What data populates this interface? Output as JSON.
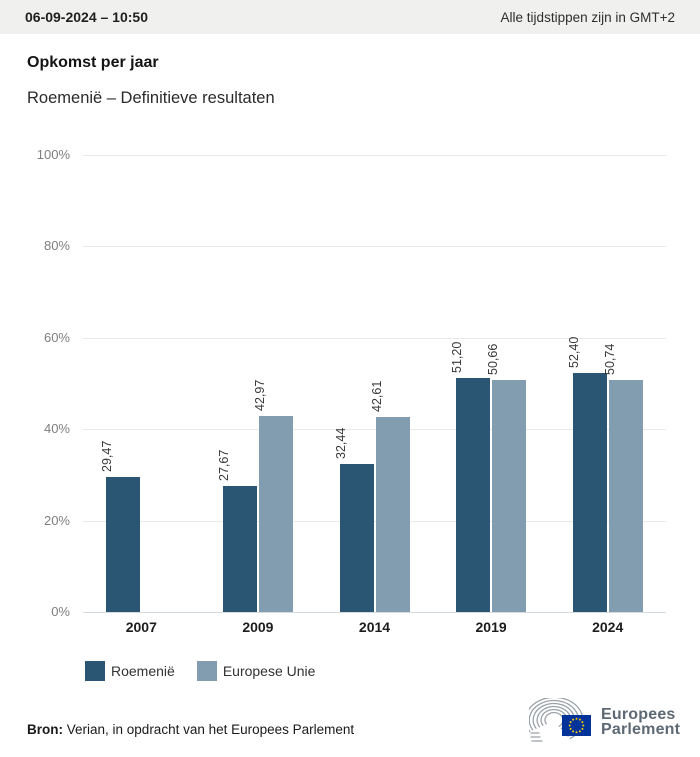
{
  "header": {
    "datetime": "06-09-2024 – 10:50",
    "timezone_note": "Alle tijdstippen zijn in GMT+2"
  },
  "title": "Opkomst per jaar",
  "subtitle": "Roemenië – Definitieve resultaten",
  "chart_data": {
    "type": "bar",
    "categories": [
      "2007",
      "2009",
      "2014",
      "2019",
      "2024"
    ],
    "series": [
      {
        "name": "Roemenië",
        "color": "#2A5674",
        "values": [
          29.47,
          27.67,
          32.44,
          51.2,
          52.4
        ],
        "labels": [
          "29,47",
          "27,67",
          "32,44",
          "51,20",
          "52,40"
        ]
      },
      {
        "name": "Europese Unie",
        "color": "#839DB0",
        "values": [
          null,
          42.97,
          42.61,
          50.66,
          50.74
        ],
        "labels": [
          null,
          "42,97",
          "42,61",
          "50,66",
          "50,74"
        ]
      }
    ],
    "ylim": [
      0,
      100
    ],
    "ytick_values": [
      0,
      20,
      40,
      60,
      80,
      100
    ],
    "ytick_labels": [
      "0%",
      "20%",
      "40%",
      "60%",
      "80%",
      "100%"
    ],
    "grid": true,
    "legend_position": "bottom",
    "value_label_rotation": -90
  },
  "footer": {
    "source_label": "Bron:",
    "source_text": " Verian, in opdracht van het Europees Parlement"
  },
  "logo": {
    "line1": "Europees",
    "line2": "Parlement",
    "flag_color": "#003399",
    "star_color": "#FFCC00"
  }
}
